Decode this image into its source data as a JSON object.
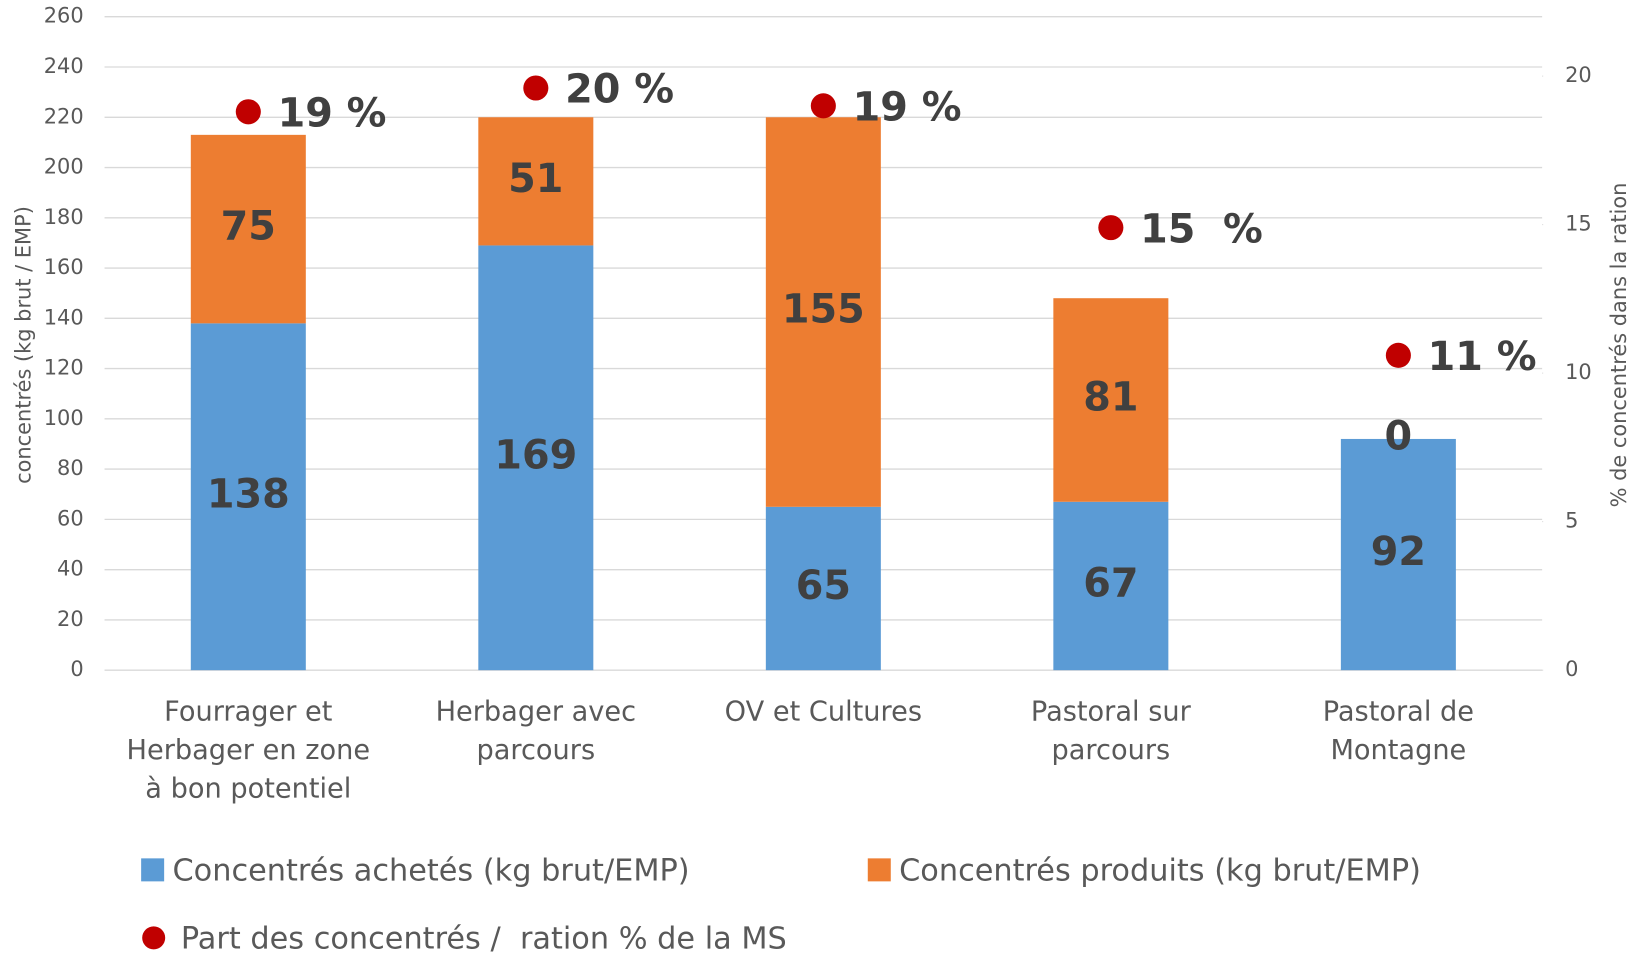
{
  "chart_data": {
    "type": "bar",
    "stacked": true,
    "categories": [
      "Fourrager et Herbager en zone à bon potentiel",
      "Herbager avec parcours",
      "OV et Cultures",
      "Pastoral sur parcours",
      "Pastoral de Montagne"
    ],
    "series": [
      {
        "name": "Concentrés achetés (kg brut/EMP)",
        "color": "#5b9bd5",
        "values": [
          138,
          169,
          65,
          67,
          92
        ]
      },
      {
        "name": "Concentrés produits (kg brut/EMP)",
        "color": "#ed7d31",
        "values": [
          75,
          51,
          155,
          81,
          0
        ]
      },
      {
        "name": "Part des concentrés /  ration % de la MS",
        "type": "scatter",
        "axis": "y2",
        "color": "#c00000",
        "values": [
          18.8,
          19.6,
          19.0,
          14.9,
          10.6
        ],
        "value_labels": [
          "19 %",
          "20 %",
          "19 %",
          "15  %",
          "11 %"
        ]
      }
    ],
    "ylabel": "concentrés (kg brut / EMP)",
    "y2label": "% de concentrés dans la ration",
    "ylim": [
      0,
      260
    ],
    "yticks": [
      0,
      20,
      40,
      60,
      80,
      100,
      120,
      140,
      160,
      180,
      200,
      220,
      240,
      260
    ],
    "y2lim": [
      0,
      22
    ],
    "y2ticks": [
      0,
      5,
      10,
      15,
      20
    ],
    "grid": true,
    "legend": "bottom"
  }
}
